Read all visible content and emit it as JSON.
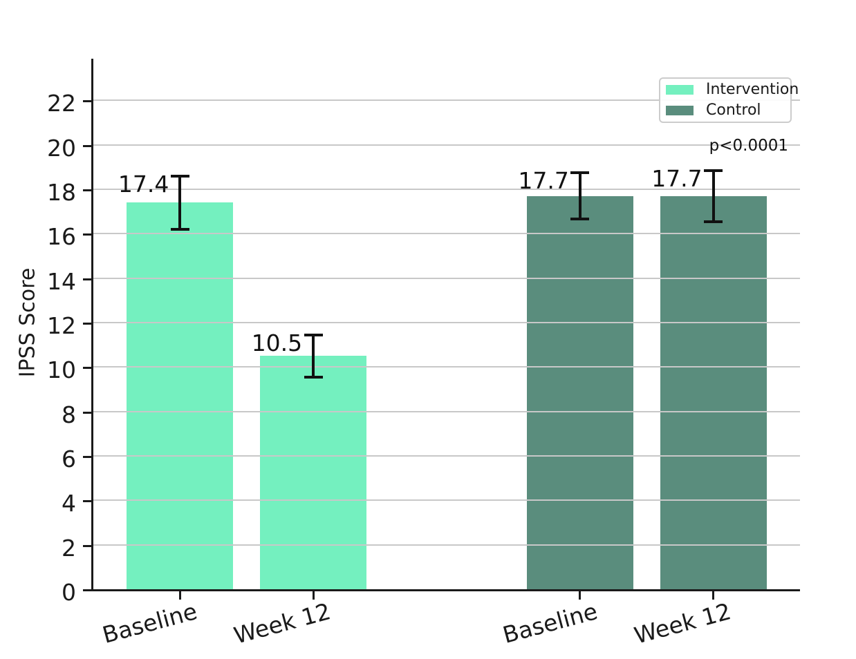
{
  "figure": {
    "background": "#ffffff"
  },
  "chart_data": {
    "type": "bar",
    "title": "",
    "xlabel": "",
    "ylabel": "IPSS Score",
    "annotation": "p<0.0001",
    "categories": [
      "Baseline",
      "Week 12",
      "Baseline",
      "Week 12"
    ],
    "x_positions": [
      0,
      1,
      3,
      4
    ],
    "bar_width_units": 0.8,
    "series": [
      {
        "name": "Intervention",
        "color": "#74F0BF",
        "bars": [
          {
            "x": 0,
            "category": "Baseline",
            "value": 17.4,
            "err": 1.2
          },
          {
            "x": 1,
            "category": "Week 12",
            "value": 10.5,
            "err": 0.95
          }
        ]
      },
      {
        "name": "Control",
        "color": "#5A8D7D",
        "bars": [
          {
            "x": 3,
            "category": "Baseline",
            "value": 17.7,
            "err": 1.05
          },
          {
            "x": 4,
            "category": "Week 12",
            "value": 17.7,
            "err": 1.15
          }
        ]
      }
    ],
    "value_labels": [
      "17.4",
      "10.5",
      "17.7",
      "17.7"
    ],
    "y_ticks": [
      0,
      2,
      4,
      6,
      8,
      10,
      12,
      14,
      16,
      18,
      20,
      22
    ],
    "ylim": [
      0,
      23.87
    ],
    "xlim": [
      -0.65,
      4.65
    ],
    "grid": true,
    "grid_on_top_of_bars": true,
    "grid_color": "#c8c8c8",
    "axis_color": "#1a1a1a",
    "errorbar_color": "#111111",
    "tick_label_rotation": 15,
    "legend": {
      "position": "upper right",
      "items": [
        {
          "label": "Intervention",
          "color": "#74F0BF"
        },
        {
          "label": "Control",
          "color": "#5A8D7D"
        }
      ]
    }
  }
}
